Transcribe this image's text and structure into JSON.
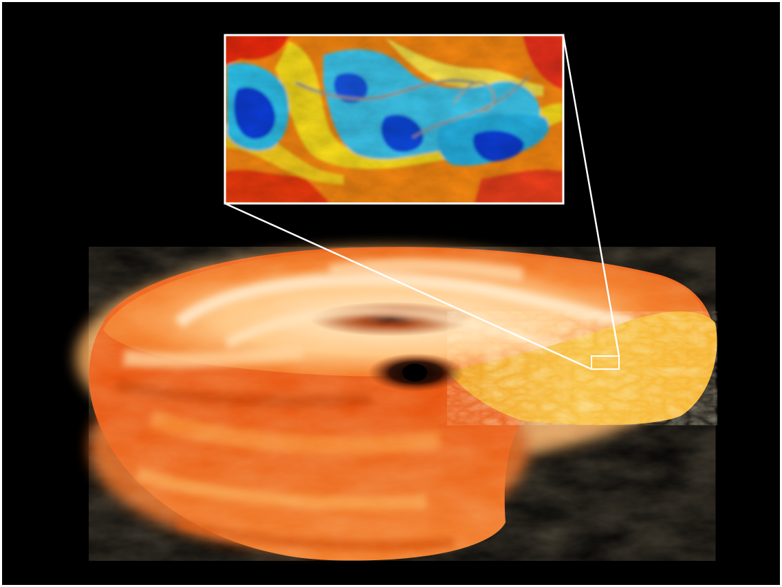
{
  "scene": {
    "kind": "simulation-visualization",
    "subject": "accretion-disk-around-black-hole",
    "cutaway": true,
    "has_zoom_inset": true,
    "colors": {
      "frame_border": "#ffffff",
      "background": "#000000",
      "disk_deep": "#c43400",
      "disk_mid": "#f36a12",
      "disk_light": "#ffc98a",
      "disk_pale": "#fff1d6",
      "cut_face": "#f5b22a",
      "black_hole": "#000000",
      "inset_red": "#f02a10",
      "inset_orange": "#fb8a12",
      "inset_yellow": "#ffe21a",
      "inset_cyan": "#2fc6f0",
      "inset_blue": "#0a3cd8",
      "connector_lines": "#ffffff"
    }
  }
}
